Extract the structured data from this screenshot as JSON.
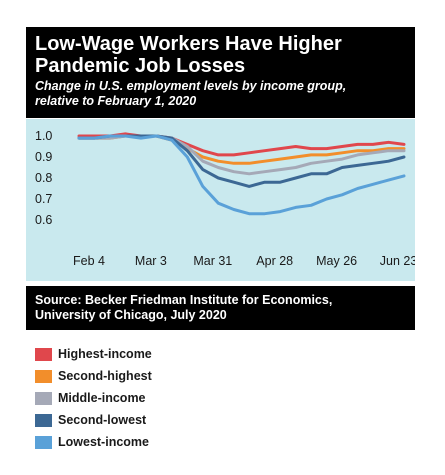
{
  "header": {
    "title_line1": "Low-Wage Workers Have Higher",
    "title_line2": "Pandemic Job Losses",
    "subtitle_line1": "Change in U.S. employment levels by income group,",
    "subtitle_line2": "relative to February 1, 2020"
  },
  "source": {
    "line1": "Source: Becker Friedman Institute for Economics,",
    "line2": "University of Chicago, July 2020"
  },
  "chart_data": {
    "type": "line",
    "title": "Low-Wage Workers Have Higher Pandemic Job Losses",
    "subtitle": "Change in U.S. employment levels by income group, relative to February 1, 2020",
    "xlabel": "",
    "ylabel": "",
    "x_ticks": [
      "Feb 4",
      "Mar 3",
      "Mar 31",
      "Apr 28",
      "May 26",
      "Jun 23"
    ],
    "y_ticks": [
      "1.0",
      "0.9",
      "0.8",
      "0.7",
      "0.6"
    ],
    "ylim": [
      0.54,
      1.04
    ],
    "grid": false,
    "legend_position": "bottom",
    "x": [
      "Feb 4",
      "Feb 11",
      "Feb 18",
      "Feb 25",
      "Mar 3",
      "Mar 10",
      "Mar 17",
      "Mar 24",
      "Mar 31",
      "Apr 7",
      "Apr 14",
      "Apr 21",
      "Apr 28",
      "May 5",
      "May 12",
      "May 19",
      "May 26",
      "Jun 2",
      "Jun 9",
      "Jun 16",
      "Jun 23",
      "Jun 30"
    ],
    "series": [
      {
        "name": "Highest-income",
        "color": "#e0474c",
        "values": [
          1.0,
          1.0,
          1.0,
          1.01,
          1.0,
          1.0,
          0.99,
          0.96,
          0.93,
          0.91,
          0.91,
          0.92,
          0.93,
          0.94,
          0.95,
          0.94,
          0.94,
          0.95,
          0.96,
          0.96,
          0.97,
          0.96
        ]
      },
      {
        "name": "Second-highest",
        "color": "#f28e2b",
        "values": [
          0.99,
          0.99,
          0.99,
          1.0,
          1.0,
          1.0,
          0.98,
          0.94,
          0.9,
          0.88,
          0.87,
          0.87,
          0.88,
          0.89,
          0.9,
          0.91,
          0.91,
          0.92,
          0.93,
          0.93,
          0.94,
          0.94
        ]
      },
      {
        "name": "Middle-income",
        "color": "#a5a9b7",
        "values": [
          0.99,
          0.99,
          0.99,
          1.0,
          1.0,
          1.0,
          0.99,
          0.95,
          0.88,
          0.85,
          0.83,
          0.82,
          0.83,
          0.84,
          0.85,
          0.87,
          0.88,
          0.89,
          0.91,
          0.92,
          0.93,
          0.93
        ]
      },
      {
        "name": "Second-lowest",
        "color": "#3c6894",
        "values": [
          0.99,
          0.99,
          1.0,
          1.0,
          1.0,
          1.0,
          0.99,
          0.93,
          0.84,
          0.8,
          0.78,
          0.76,
          0.78,
          0.78,
          0.8,
          0.82,
          0.82,
          0.85,
          0.86,
          0.87,
          0.88,
          0.9
        ]
      },
      {
        "name": "Lowest-income",
        "color": "#5aa1d8",
        "values": [
          0.99,
          0.99,
          1.0,
          1.0,
          0.99,
          1.0,
          0.98,
          0.9,
          0.76,
          0.68,
          0.65,
          0.63,
          0.63,
          0.64,
          0.66,
          0.67,
          0.7,
          0.72,
          0.75,
          0.77,
          0.79,
          0.81
        ]
      }
    ]
  }
}
